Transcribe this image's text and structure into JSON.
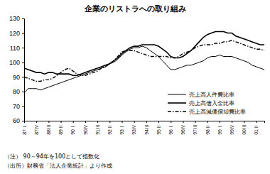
{
  "chart_data": {
    "type": "line",
    "title": "企業のリストラへの取り組み",
    "annotations": [
      "（注） 90～94年を100として指数化",
      "（出所）財務省「法人企業統計」より作成"
    ],
    "categories": [
      "87Ⅰ",
      null,
      null,
      "87Ⅳ",
      null,
      null,
      "88Ⅲ",
      null,
      null,
      "89Ⅱ",
      null,
      null,
      "90Ⅰ",
      null,
      null,
      "90Ⅳ",
      null,
      null,
      "91Ⅲ",
      null,
      null,
      "92Ⅱ",
      null,
      null,
      "93Ⅰ",
      null,
      null,
      "93Ⅳ",
      null,
      null,
      "94Ⅲ",
      null,
      null,
      "95Ⅱ",
      null,
      null,
      "96Ⅰ",
      null,
      null,
      "96Ⅳ",
      null,
      null,
      "97Ⅲ",
      null,
      null,
      "98Ⅱ",
      null,
      null,
      "99Ⅰ",
      null,
      null,
      "99Ⅳ",
      null,
      null,
      "00Ⅲ",
      null,
      null,
      "01Ⅱ",
      null,
      null
    ],
    "series": [
      {
        "name": "売上高人件費比率",
        "color": "#000000",
        "line_style": "solid",
        "values": [
          79,
          82,
          82,
          82,
          81,
          82,
          83,
          84,
          85,
          86,
          87,
          88,
          89,
          90,
          91,
          92,
          93,
          94,
          95,
          96,
          97,
          99,
          100,
          102,
          105,
          107,
          109,
          110,
          110,
          111,
          110,
          108,
          106,
          104,
          101,
          98,
          95,
          95,
          96,
          97,
          98,
          98,
          99,
          100,
          101,
          103,
          104,
          104,
          105,
          104,
          104,
          104,
          103,
          102,
          101,
          100,
          98,
          97,
          96,
          95
        ]
      },
      {
        "name": "売上高借入金比率",
        "color": "#000000",
        "line_style": "solid",
        "values": [
          96,
          95,
          94,
          93,
          93,
          92,
          93,
          93,
          92,
          92,
          92,
          92,
          91,
          91,
          92,
          93,
          94,
          95,
          96,
          97,
          98,
          99,
          101,
          103,
          106,
          108,
          110,
          111,
          111,
          112,
          112,
          112,
          112,
          111,
          109,
          107,
          104,
          103,
          103,
          104,
          106,
          108,
          111,
          114,
          117,
          119,
          120,
          121,
          121,
          121,
          120,
          120,
          118,
          117,
          116,
          115,
          114,
          113,
          112,
          112
        ]
      },
      {
        "name": "売上高減価償却費比率",
        "color": "#000000",
        "line_style": "dashdot",
        "values": [
          90,
          89,
          88,
          87,
          87,
          88,
          88,
          89,
          91,
          93,
          95,
          96,
          94,
          92,
          91,
          91,
          92,
          93,
          94,
          96,
          97,
          99,
          101,
          104,
          107,
          108,
          108,
          108,
          107,
          106,
          105,
          104,
          104,
          104,
          104,
          104,
          103,
          103,
          104,
          106,
          107,
          108,
          110,
          111,
          112,
          112,
          112,
          113,
          113,
          114,
          114,
          115,
          114,
          113,
          112,
          111,
          110,
          109,
          109,
          108
        ]
      }
    ],
    "ylim": [
      60,
      130
    ],
    "yticks": [
      60,
      70,
      80,
      90,
      100,
      110,
      120,
      130
    ],
    "grid": false,
    "legend": "lower right"
  }
}
